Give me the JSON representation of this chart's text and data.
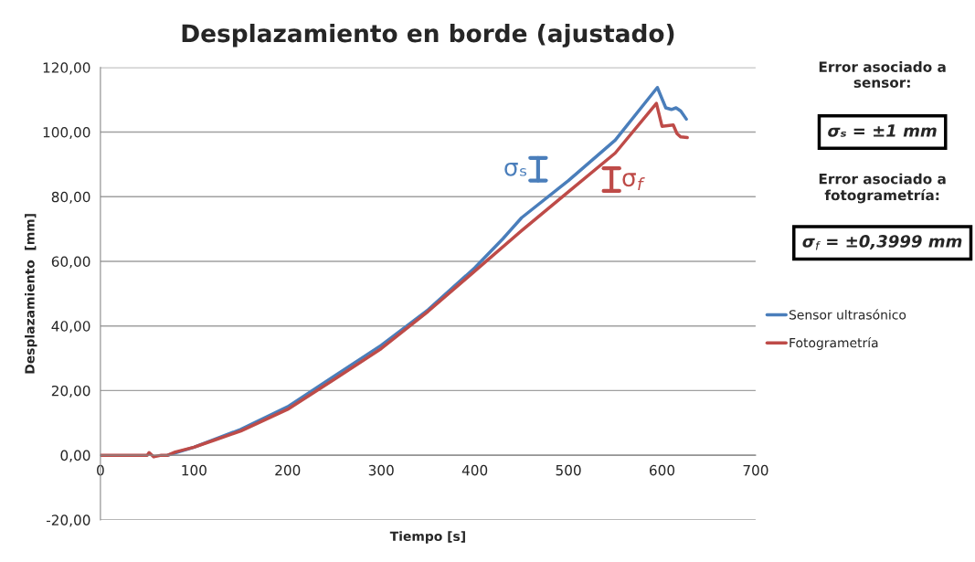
{
  "chart_data": {
    "type": "line",
    "title": "Desplazamiento en borde (ajustado)",
    "xlabel": "Tiempo [s]",
    "ylabel": "Desplazamiento  [mm]",
    "series": [
      {
        "name": "Sensor ultrasónico",
        "color": "#4a7ebb",
        "x": [
          72,
          100,
          150,
          200,
          250,
          300,
          350,
          400,
          430,
          450,
          500,
          550,
          595,
          604,
          610,
          615,
          620,
          626
        ],
        "values": [
          0,
          2.5,
          8,
          15,
          24.5,
          34,
          45,
          58,
          67,
          73.5,
          85,
          97.5,
          113.8,
          107.5,
          107,
          107.5,
          106.5,
          104
        ]
      },
      {
        "name": "Fotogrametría",
        "color": "#be4b48",
        "x": [
          0,
          50,
          52,
          57,
          65,
          72,
          80,
          100,
          120,
          150,
          200,
          250,
          300,
          350,
          400,
          450,
          500,
          550,
          594,
          600,
          612,
          616,
          620,
          627
        ],
        "values": [
          0,
          0,
          0.8,
          -0.5,
          0,
          0,
          1,
          2.5,
          4.5,
          7.5,
          14.2,
          23.5,
          33,
          44.5,
          57,
          69.5,
          81.5,
          93.5,
          108.9,
          101.8,
          102.2,
          99.5,
          98.5,
          98.3
        ]
      }
    ],
    "xlim": [
      0,
      700
    ],
    "xticks": [
      0,
      100,
      200,
      300,
      400,
      500,
      600,
      700
    ],
    "ylim": [
      -20,
      120
    ],
    "yticks": [
      {
        "value": -20,
        "label": "-20,00"
      },
      {
        "value": 0,
        "label": "0,00"
      },
      {
        "value": 20,
        "label": "20,00"
      },
      {
        "value": 40,
        "label": "40,00"
      },
      {
        "value": 60,
        "label": "60,00"
      },
      {
        "value": 80,
        "label": "80,00"
      },
      {
        "value": 100,
        "label": "100,00"
      },
      {
        "value": 120,
        "label": "120,00"
      }
    ],
    "grid": "y",
    "legend": "right",
    "marker": "none",
    "line_style": "solid",
    "annotations": [
      "σₛ",
      "σ$_{f}$",
      "Error asociado a sensor:",
      "σₛ = ±1 mm",
      "Error asociado a fotogrametría:",
      "σ$_{f}$ = ±0,3999 mm"
    ]
  }
}
